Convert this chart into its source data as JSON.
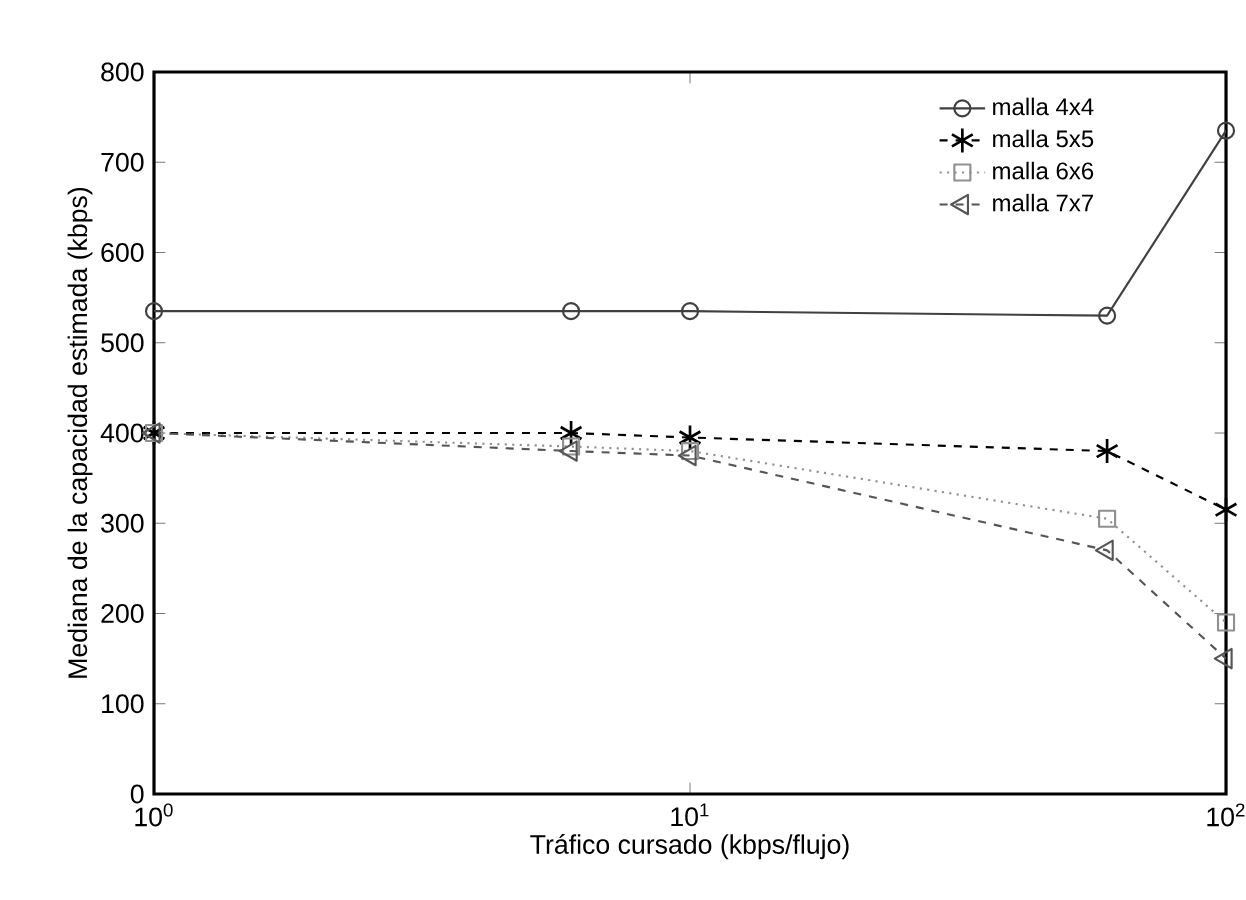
{
  "chart_data": {
    "type": "line",
    "xlabel": "Tráfico cursado (kbps/flujo)",
    "ylabel": "Mediana de la capacidad estimada (kbps)",
    "log": "x",
    "x": [
      1,
      6,
      10,
      60,
      100
    ],
    "xlim": [
      1,
      100
    ],
    "xticks": [
      {
        "value": 1,
        "label": "10$^{0}$"
      },
      {
        "value": 10,
        "label": "10$^{1}$"
      },
      {
        "value": 100,
        "label": "10$^{2}$"
      }
    ],
    "ylim": [
      0,
      800
    ],
    "yticks": [
      0,
      100,
      200,
      300,
      400,
      500,
      600,
      700,
      800
    ],
    "legend": "top right",
    "grid": false,
    "series": [
      {
        "name": "malla 4x4",
        "color": "#404040",
        "marker": "circle",
        "line_style": "solid",
        "values": [
          535,
          535,
          535,
          530,
          735
        ]
      },
      {
        "name": "malla 5x5",
        "color": "#000000",
        "marker": "cross",
        "line_style": "dashed",
        "values": [
          400,
          400,
          395,
          380,
          315
        ]
      },
      {
        "name": "malla 6x6",
        "color": "#909090",
        "marker": "square",
        "line_style": "dotted",
        "values": [
          400,
          385,
          380,
          305,
          190
        ]
      },
      {
        "name": "malla 7x7",
        "color": "#555555",
        "marker": "triangle",
        "line_style": "dashed",
        "values": [
          400,
          380,
          375,
          270,
          150
        ]
      }
    ]
  }
}
